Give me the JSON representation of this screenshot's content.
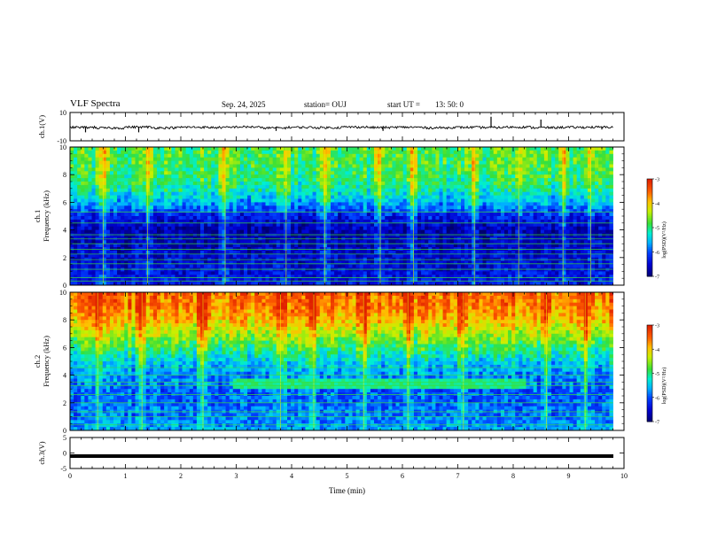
{
  "header": {
    "title": "VLF Spectra",
    "date": "Sep. 24, 2025",
    "station_label": "station= OUJ",
    "start_label": "start UT =",
    "start_time": "13: 50: 0"
  },
  "colors": {
    "waveform": "#000000",
    "frame": "#000000",
    "dark_blue": "#00006e",
    "blue": "#0040ff",
    "cyan": "#00c8ff",
    "green": "#38e038",
    "yellow": "#f0f000",
    "orange": "#ff9000",
    "red": "#e02000"
  },
  "chart_data": [
    {
      "type": "line",
      "name": "ch1-waveform",
      "ylabel": "ch.1(V)",
      "ylim": [
        -10,
        10
      ],
      "yticks": [
        "10",
        "-10"
      ],
      "xlim": [
        0,
        10
      ],
      "y": [
        -0.5,
        -1.0,
        -0.3,
        -0.8,
        -0.4,
        -0.6,
        -0.2,
        -0.9,
        -0.5,
        -0.7,
        -0.3,
        -0.6,
        -0.4,
        -0.8,
        -0.5,
        -0.6,
        -0.3,
        -0.7,
        -0.5,
        -0.4
      ],
      "spikes": [
        {
          "t": 0.28,
          "v": -4
        },
        {
          "t": 1.24,
          "v": -4
        },
        {
          "t": 3.72,
          "v": -3
        },
        {
          "t": 5.65,
          "v": -3
        },
        {
          "t": 7.6,
          "v": 7
        },
        {
          "t": 8.5,
          "v": 5
        },
        {
          "t": 9.6,
          "v": -2
        }
      ]
    },
    {
      "type": "heatmap",
      "name": "ch1-spectrogram",
      "ylabel": "ch.1\nFrequency (kHz)",
      "ylim": [
        0,
        10
      ],
      "yticks": [
        "0",
        "2",
        "4",
        "6",
        "8",
        "10"
      ],
      "xlim": [
        0,
        9.8
      ],
      "color_range": [
        -7,
        -3
      ],
      "colorbar_label": "log(PSD)(V²/Hz)",
      "colorbar_ticks": [
        "-3",
        "-4",
        "-5",
        "-6",
        "-7"
      ],
      "profile": [
        {
          "f": 0.0,
          "v": -6.3
        },
        {
          "f": 1.0,
          "v": -6.4
        },
        {
          "f": 2.0,
          "v": -6.5
        },
        {
          "f": 3.0,
          "v": -6.6
        },
        {
          "f": 4.0,
          "v": -6.7
        },
        {
          "f": 5.0,
          "v": -6.3
        },
        {
          "f": 6.0,
          "v": -5.6
        },
        {
          "f": 7.0,
          "v": -5.1
        },
        {
          "f": 8.0,
          "v": -4.9
        },
        {
          "f": 9.0,
          "v": -4.8
        },
        {
          "f": 10.0,
          "v": -4.8
        }
      ],
      "tone_lines_khz": [
        0.3,
        0.55,
        1.15,
        1.55,
        1.85,
        2.25,
        2.6,
        3.0,
        3.35,
        3.65,
        4.5,
        5.3
      ],
      "sferic_times_min": [
        0.6,
        1.4,
        2.8,
        3.9,
        4.6,
        5.6,
        6.2,
        7.3,
        8.1,
        8.9,
        9.4
      ]
    },
    {
      "type": "heatmap",
      "name": "ch2-spectrogram",
      "ylabel": "ch.2\nFrequency (kHz)",
      "ylim": [
        0,
        10
      ],
      "yticks": [
        "0",
        "2",
        "4",
        "6",
        "8",
        "10"
      ],
      "xlim": [
        0,
        9.8
      ],
      "color_range": [
        -7,
        -3
      ],
      "colorbar_label": "log(PSD)(V²/Hz)",
      "colorbar_ticks": [
        "-3",
        "-4",
        "-5",
        "-6",
        "-7"
      ],
      "profile": [
        {
          "f": 0.0,
          "v": -5.6
        },
        {
          "f": 1.0,
          "v": -5.8
        },
        {
          "f": 2.0,
          "v": -5.9
        },
        {
          "f": 3.0,
          "v": -5.9
        },
        {
          "f": 4.0,
          "v": -5.7
        },
        {
          "f": 5.0,
          "v": -5.4
        },
        {
          "f": 6.0,
          "v": -4.9
        },
        {
          "f": 7.0,
          "v": -4.4
        },
        {
          "f": 8.0,
          "v": -3.9
        },
        {
          "f": 9.0,
          "v": -3.6
        },
        {
          "f": 10.0,
          "v": -3.5
        }
      ],
      "tone_lines_khz": [
        0.4,
        1.0,
        1.35,
        2.0,
        2.6,
        3.25,
        3.5,
        4.0,
        4.55
      ],
      "band": {
        "t_start": 2.95,
        "t_end": 8.25,
        "f_low": 3.05,
        "f_high": 3.65,
        "v": -5.0
      },
      "sferic_times_min": [
        0.5,
        1.3,
        2.4,
        3.8,
        4.4,
        5.3,
        6.1,
        7.1,
        8.6,
        9.3
      ]
    },
    {
      "type": "line",
      "name": "ch3-waveform",
      "ylabel": "ch.3(V)",
      "ylim": [
        -5,
        5
      ],
      "yticks": [
        "5",
        "0",
        "-5"
      ],
      "xlim": [
        0,
        10
      ],
      "xticks": [
        "0",
        "1",
        "2",
        "3",
        "4",
        "5",
        "6",
        "7",
        "8",
        "9",
        "10"
      ],
      "xlabel": "Time (min)",
      "level": -1.0
    }
  ]
}
